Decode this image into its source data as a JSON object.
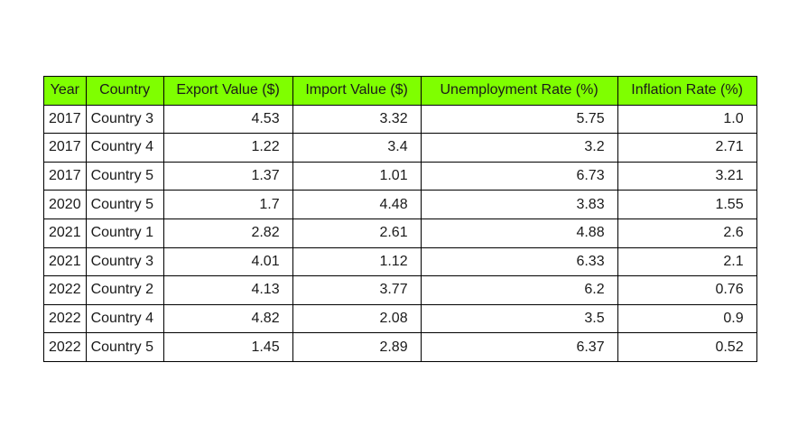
{
  "chart_data": {
    "type": "table",
    "header_color": "#7fff00",
    "columns": [
      "Year",
      "Country",
      "Export Value ($)",
      "Import Value ($)",
      "Unemployment Rate (%)",
      "Inflation Rate (%)"
    ],
    "rows": [
      [
        "2017",
        "Country 3",
        "4.53",
        "3.32",
        "5.75",
        "1.0"
      ],
      [
        "2017",
        "Country 4",
        "1.22",
        "3.4",
        "3.2",
        "2.71"
      ],
      [
        "2017",
        "Country 5",
        "1.37",
        "1.01",
        "6.73",
        "3.21"
      ],
      [
        "2020",
        "Country 5",
        "1.7",
        "4.48",
        "3.83",
        "1.55"
      ],
      [
        "2021",
        "Country 1",
        "2.82",
        "2.61",
        "4.88",
        "2.6"
      ],
      [
        "2021",
        "Country 3",
        "4.01",
        "1.12",
        "6.33",
        "2.1"
      ],
      [
        "2022",
        "Country 2",
        "4.13",
        "3.77",
        "6.2",
        "0.76"
      ],
      [
        "2022",
        "Country 4",
        "4.82",
        "2.08",
        "3.5",
        "0.9"
      ],
      [
        "2022",
        "Country 5",
        "1.45",
        "2.89",
        "6.37",
        "0.52"
      ]
    ]
  }
}
